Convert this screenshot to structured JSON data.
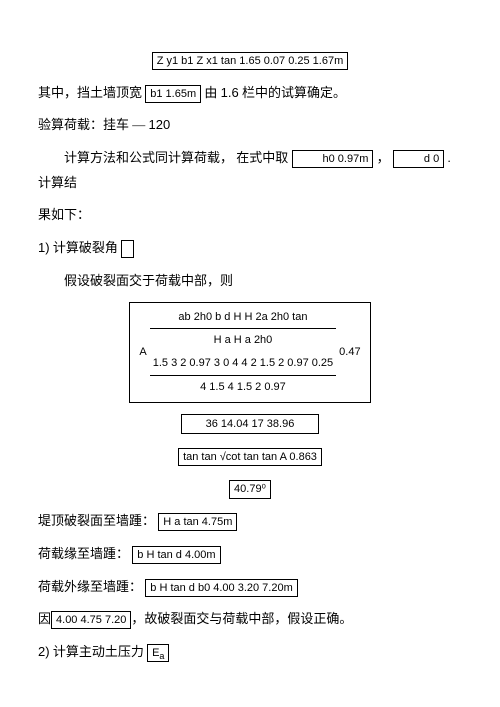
{
  "eq_top": "Z y1   b1   Z x1 tan     1.65  0.07     0.25   1.67m",
  "para1_a": "其中，挡土墙顶宽 ",
  "box_b1": "b1   1.65m",
  "para1_b": " 由 ",
  "para1_c": "1.6",
  "para1_d": " 栏中的试算确定。",
  "para2": "验算荷载：挂车 — ",
  "para2_num": "120",
  "para3_a": "计算方法和公式同计算荷载，  在式中取 ",
  "box_h0": "h0    0.97m",
  "para3_b": "，",
  "box_d0": "d    0",
  "para3_c": ". 计算结",
  "para3_d": "果如下：",
  "sec1_a": "1)",
  "sec1_b": " 计算破裂角 ",
  "para4": "假设破裂面交于荷载中部，则",
  "frac_num1": "ab   2h0  b  d           H H   2a     2h0    tan",
  "frac_mid": "H    a H     a  2h0",
  "frac_row1": "1.5  3    2 0.97     3    0    4 4    2   1.5    2   0.97         0.25",
  "frac_row2": "4     1.5    4   1.5   2    0.97",
  "frac_val": "0.47",
  "A_label": "A",
  "box_calc1": "36    14.04    17     38.96",
  "box_tan": "tan        tan      √cot      tan    tan      A    0.863",
  "box_angle": "40.79⁰",
  "row1_a": "堤顶破裂面至墙踵：",
  "box_r1": "H    a tan      4.75m",
  "row2_a": "荷载缘至墙踵：",
  "box_r2": "b    H tan       d    4.00m",
  "row3_a": "荷载外缘至墙踵：",
  "box_r3": "b    H tan       d    b0    4.00   3.20   7.20m",
  "row4_a": "因",
  "box_r4": "4.00   4.75   7.20",
  "row4_b": "，故破裂面交与荷载中部，假设正确。",
  "sec2_a": "2)",
  "sec2_b": " 计算主动土压力 ",
  "box_ea": "Ea"
}
